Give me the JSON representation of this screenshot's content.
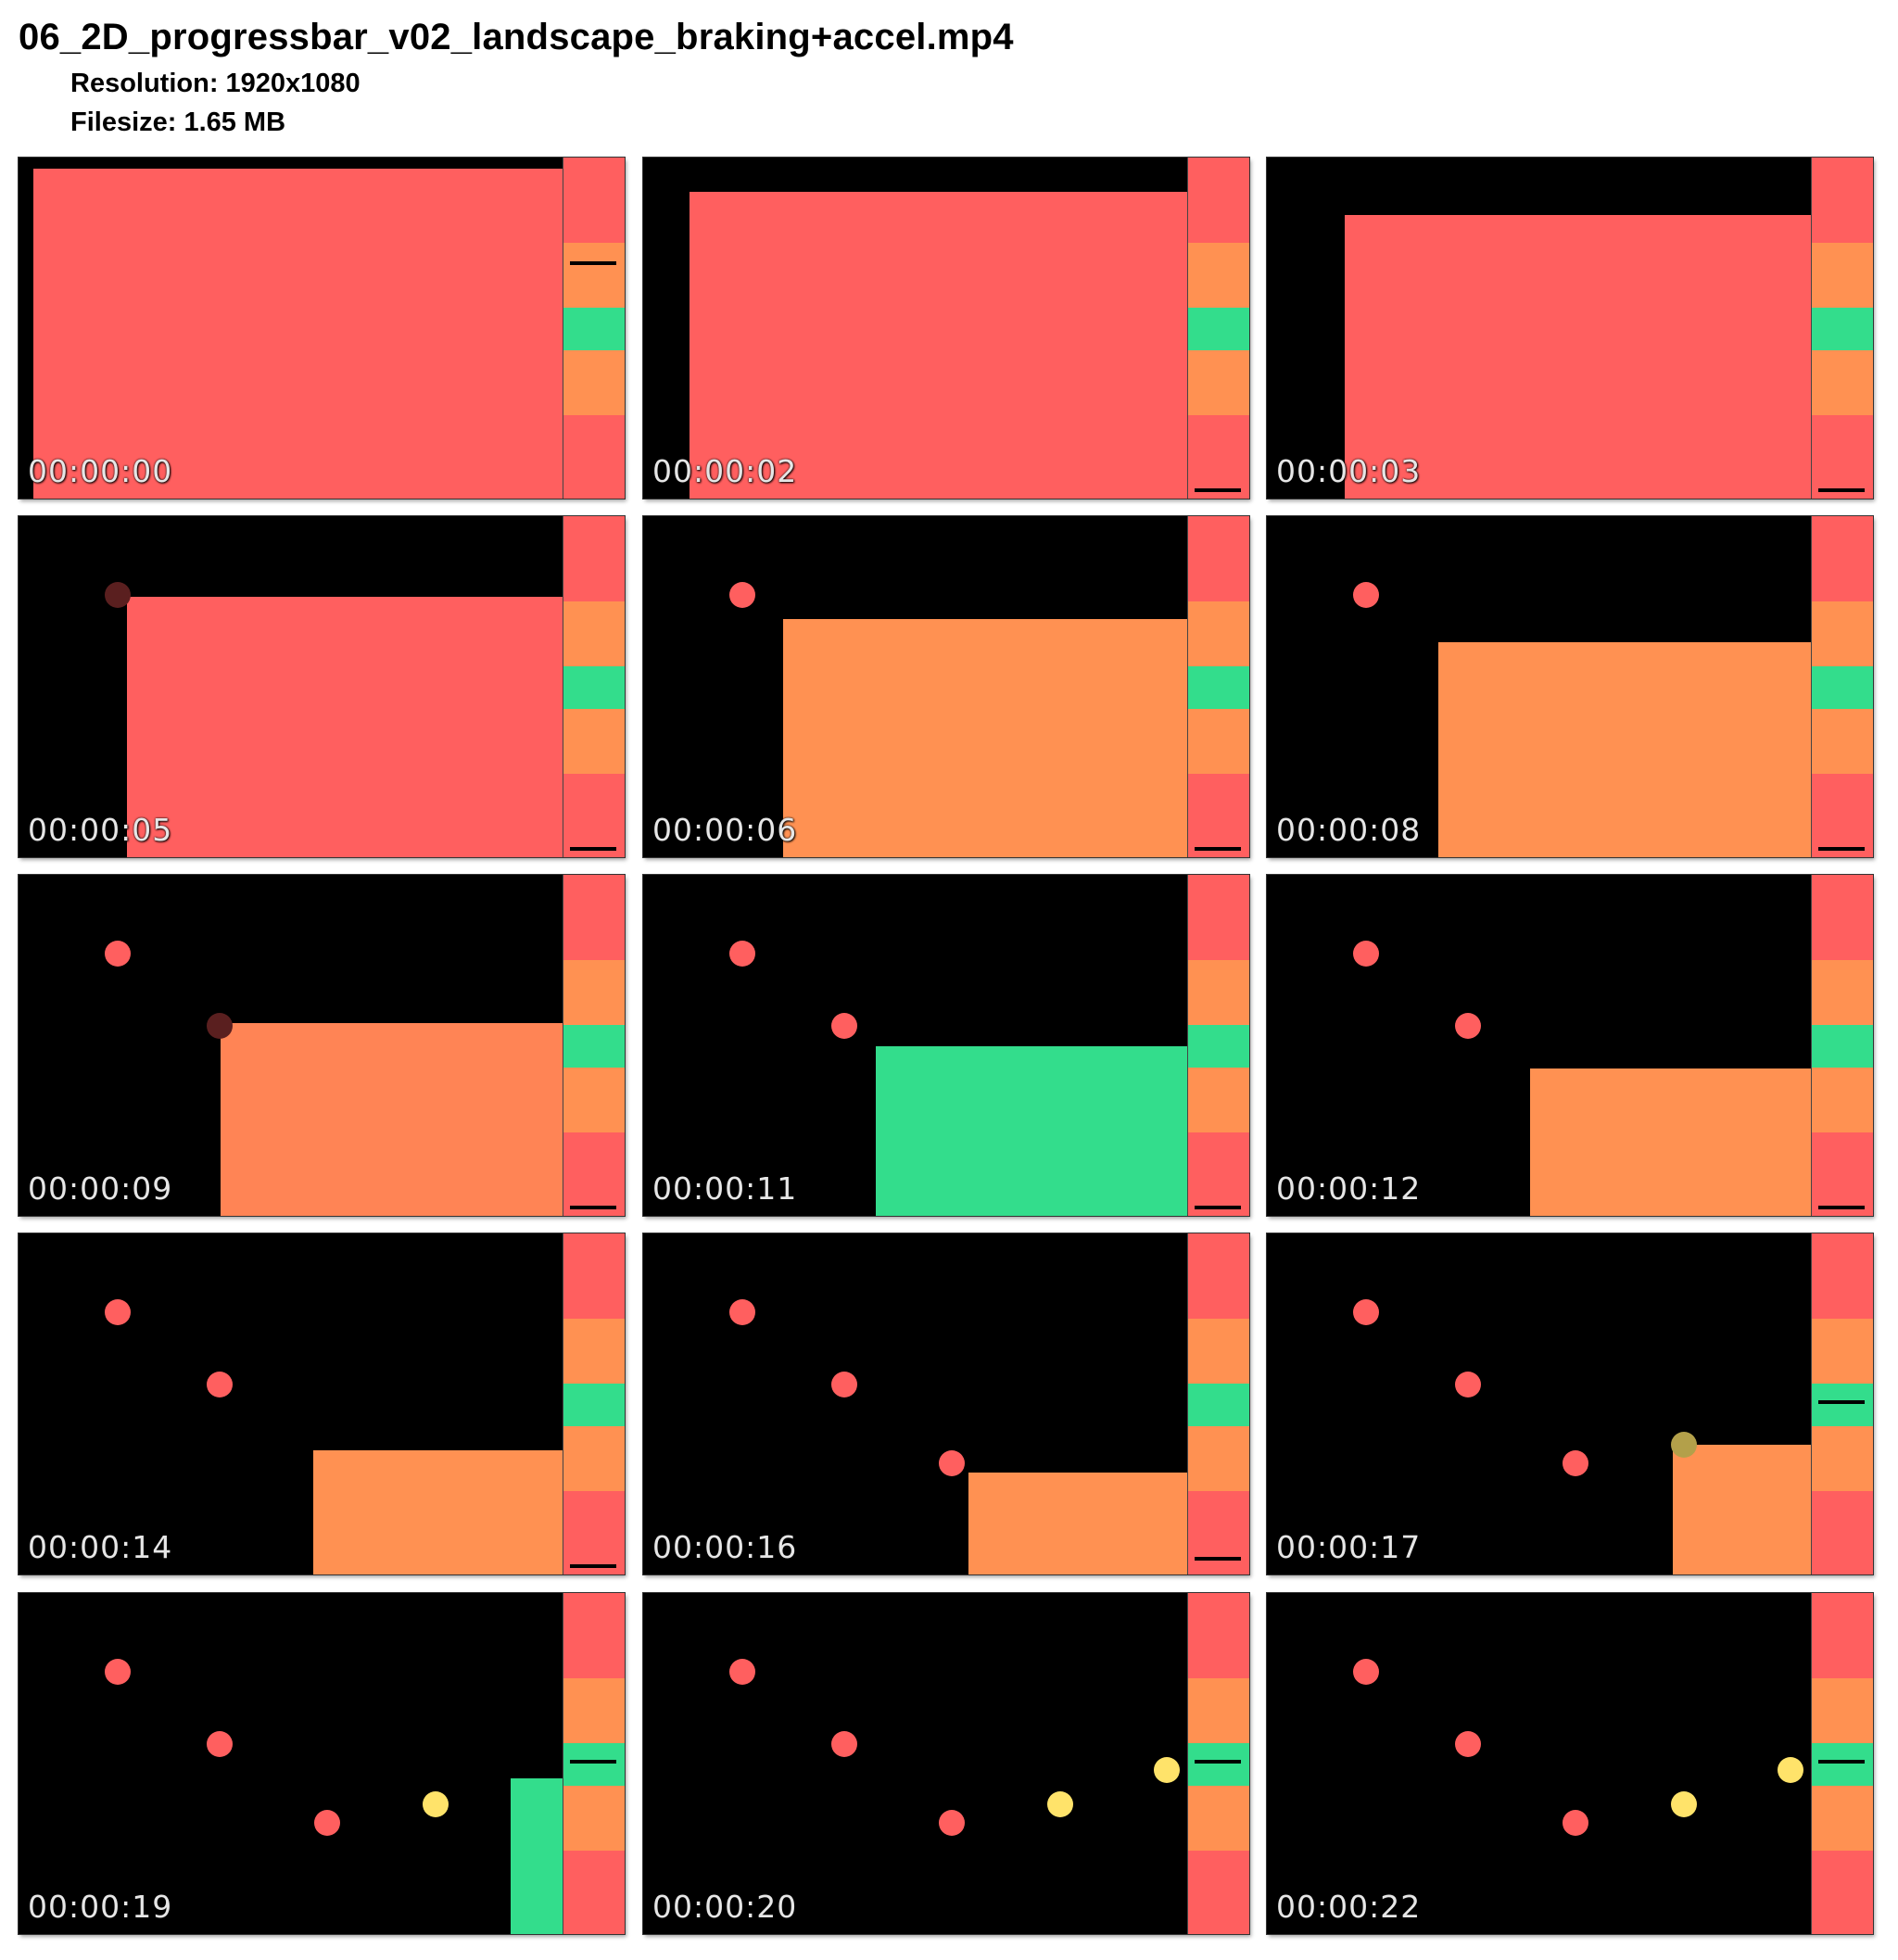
{
  "file_name": "06_2D_progressbar_v02_landscape_braking+accel.mp4",
  "resolution_label": "Resolution:",
  "resolution_value": "1920x1080",
  "filesize_label": "Filesize:",
  "filesize_value": "1.65 MB",
  "colors": {
    "red": "#ff5f5f",
    "orange": "#ff9152",
    "green": "#33dd8c",
    "yellow": "#ffe36a",
    "background": "#000000"
  },
  "timestamps": [
    "00:00:00",
    "00:00:02",
    "00:00:03",
    "00:00:05",
    "00:00:06",
    "00:00:08",
    "00:00:09",
    "00:00:11",
    "00:00:12",
    "00:00:14",
    "00:00:16",
    "00:00:17",
    "00:00:19",
    "00:00:20",
    "00:00:22"
  ]
}
